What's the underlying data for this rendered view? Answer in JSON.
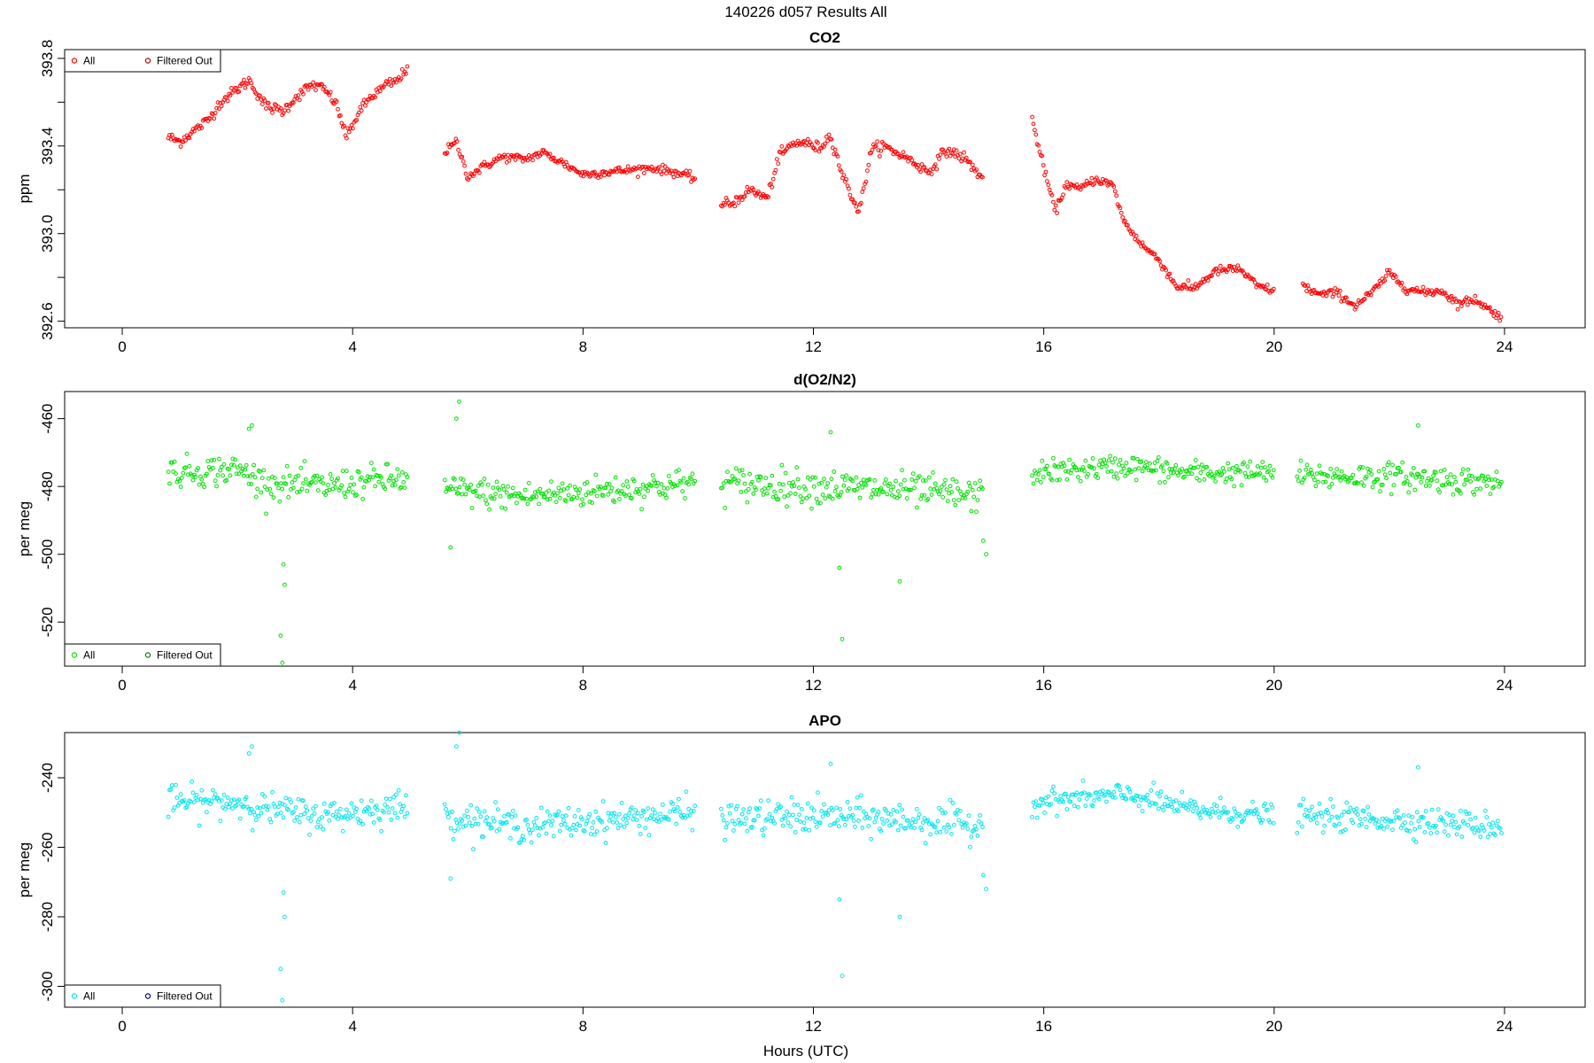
{
  "figure": {
    "main_title": "140226   d057   Results All",
    "xlabel": "Hours (UTC)"
  },
  "chart_data": [
    {
      "type": "scatter",
      "title": "CO2",
      "ylabel": "ppm",
      "xlim": [
        -1.0,
        25.4
      ],
      "ylim": [
        392.57,
        393.84
      ],
      "x_ticks": [
        0,
        4,
        8,
        12,
        16,
        20,
        24
      ],
      "y_ticks": [
        392.6,
        393.0,
        393.4,
        393.8
      ],
      "y_tick_labels": [
        "392.6",
        "393.0",
        "393.4",
        "393.8"
      ],
      "y_minor_ticks": [
        392.8,
        393.2,
        393.6
      ],
      "legend": {
        "position": "top-left",
        "entries": [
          "All",
          "Filtered Out"
        ]
      },
      "colors": {
        "all": "#ff0000",
        "filtered": "#b00000"
      },
      "series": [
        {
          "name": "All",
          "segments": [
            {
              "x": [
                0.8,
                1.0,
                1.3,
                1.5,
                1.7,
                2.0,
                2.2,
                2.5,
                2.8,
                3.0,
                3.3,
                3.5,
                3.7,
                3.9,
                4.1,
                4.3,
                4.6,
                4.8,
                4.95
              ],
              "y": [
                393.44,
                393.42,
                393.48,
                393.52,
                393.6,
                393.66,
                393.7,
                393.58,
                393.56,
                393.62,
                393.68,
                393.66,
                393.6,
                393.44,
                393.55,
                393.62,
                393.68,
                393.7,
                393.76
              ],
              "noise": 0.025
            },
            {
              "x": [
                5.6,
                5.8,
                6.0,
                6.3,
                6.6,
                7.0,
                7.3,
                7.6,
                8.0,
                8.4,
                8.8,
                9.2,
                9.6,
                9.95
              ],
              "y": [
                393.37,
                393.42,
                393.26,
                393.31,
                393.35,
                393.34,
                393.37,
                393.33,
                393.27,
                393.28,
                393.29,
                393.3,
                393.28,
                393.25
              ],
              "noise": 0.02
            },
            {
              "x": [
                10.4,
                10.6,
                10.9,
                11.2,
                11.4,
                11.6,
                11.8,
                12.1,
                12.3,
                12.5,
                12.7,
                12.8,
                13.0,
                13.2,
                13.6,
                14.0,
                14.3,
                14.6,
                14.95
              ],
              "y": [
                393.13,
                393.14,
                393.2,
                393.16,
                393.35,
                393.4,
                393.42,
                393.39,
                393.45,
                393.27,
                393.15,
                393.1,
                393.38,
                393.4,
                393.35,
                393.28,
                393.38,
                393.35,
                393.25
              ],
              "noise": 0.025
            },
            {
              "x": [
                15.8,
                16.0,
                16.2,
                16.4,
                16.6,
                16.9,
                17.2,
                17.4,
                17.7,
                18.0,
                18.3,
                18.6,
                19.0,
                19.4,
                19.7,
                20.0
              ],
              "y": [
                393.52,
                393.3,
                393.1,
                393.23,
                393.2,
                393.25,
                393.22,
                393.05,
                392.95,
                392.88,
                392.76,
                392.75,
                392.83,
                392.84,
                392.76,
                392.74
              ],
              "noise": 0.02
            },
            {
              "x": [
                20.5,
                20.8,
                21.1,
                21.4,
                21.7,
                22.0,
                22.3,
                22.6,
                22.9,
                23.2,
                23.5,
                23.8,
                23.95
              ],
              "y": [
                392.76,
                392.72,
                392.73,
                392.67,
                392.73,
                392.82,
                392.75,
                392.73,
                392.74,
                392.68,
                392.7,
                392.64,
                392.62
              ],
              "noise": 0.02
            }
          ],
          "outliers": []
        }
      ]
    },
    {
      "type": "scatter",
      "title": "d(O2/N2)",
      "ylabel": "per meg",
      "xlim": [
        -1.0,
        25.4
      ],
      "ylim": [
        -533,
        -452
      ],
      "x_ticks": [
        0,
        4,
        8,
        12,
        16,
        20,
        24
      ],
      "y_ticks": [
        -460,
        -480,
        -500,
        -520
      ],
      "y_tick_labels": [
        "-460",
        "-480",
        "-500",
        "-520"
      ],
      "y_minor_ticks": [],
      "legend": {
        "position": "bottom-left",
        "entries": [
          "All",
          "Filtered Out"
        ]
      },
      "colors": {
        "all": "#00e000",
        "filtered": "#008000"
      },
      "series": [
        {
          "name": "All",
          "segments": [
            {
              "x": [
                0.8,
                2.0,
                2.5,
                3.5,
                4.5,
                4.95
              ],
              "y": [
                -476,
                -475,
                -479,
                -480,
                -478,
                -478
              ],
              "noise": 4.5
            },
            {
              "x": [
                5.6,
                7.0,
                8.5,
                9.95
              ],
              "y": [
                -481,
                -483,
                -481,
                -479
              ],
              "noise": 4.5
            },
            {
              "x": [
                10.4,
                12.0,
                13.5,
                14.95
              ],
              "y": [
                -479,
                -480,
                -481,
                -483
              ],
              "noise": 5
            },
            {
              "x": [
                15.8,
                17.5,
                18.5,
                20.0
              ],
              "y": [
                -476,
                -474,
                -476,
                -476
              ],
              "noise": 3.5
            },
            {
              "x": [
                20.4,
                22.0,
                23.95
              ],
              "y": [
                -477,
                -477,
                -479
              ],
              "noise": 4
            }
          ],
          "outliers": [
            {
              "x": 2.25,
              "y": -462
            },
            {
              "x": 2.2,
              "y": -463
            },
            {
              "x": 2.8,
              "y": -503
            },
            {
              "x": 2.82,
              "y": -509
            },
            {
              "x": 2.75,
              "y": -524
            },
            {
              "x": 2.78,
              "y": -532
            },
            {
              "x": 5.85,
              "y": -455
            },
            {
              "x": 5.8,
              "y": -460
            },
            {
              "x": 5.7,
              "y": -498
            },
            {
              "x": 12.45,
              "y": -504
            },
            {
              "x": 12.5,
              "y": -525
            },
            {
              "x": 13.5,
              "y": -508
            },
            {
              "x": 15.0,
              "y": -500
            },
            {
              "x": 14.95,
              "y": -496
            },
            {
              "x": 12.3,
              "y": -464
            },
            {
              "x": 22.5,
              "y": -462
            }
          ]
        }
      ]
    },
    {
      "type": "scatter",
      "title": "APO",
      "ylabel": "per meg",
      "xlim": [
        -1.0,
        25.4
      ],
      "ylim": [
        -306,
        -227
      ],
      "x_ticks": [
        0,
        4,
        8,
        12,
        16,
        20,
        24
      ],
      "y_ticks": [
        -240,
        -260,
        -280,
        -300
      ],
      "y_tick_labels": [
        "-240",
        "-260",
        "-280",
        "-300"
      ],
      "y_minor_ticks": [],
      "legend": {
        "position": "bottom-left",
        "entries": [
          "All",
          "Filtered Out"
        ]
      },
      "colors": {
        "all": "#00e5ee",
        "filtered": "#000080"
      },
      "series": [
        {
          "name": "All",
          "segments": [
            {
              "x": [
                0.8,
                2.0,
                2.5,
                3.5,
                4.5,
                4.95
              ],
              "y": [
                -247,
                -247,
                -249,
                -251,
                -249,
                -248
              ],
              "noise": 4.5
            },
            {
              "x": [
                5.6,
                7.0,
                8.5,
                9.95
              ],
              "y": [
                -251,
                -254,
                -252,
                -250
              ],
              "noise": 4.5
            },
            {
              "x": [
                10.4,
                12.0,
                13.5,
                14.95
              ],
              "y": [
                -252,
                -251,
                -252,
                -254
              ],
              "noise": 5
            },
            {
              "x": [
                15.8,
                17.5,
                18.5,
                20.0
              ],
              "y": [
                -247,
                -245,
                -249,
                -251
              ],
              "noise": 3.5
            },
            {
              "x": [
                20.4,
                22.0,
                23.95
              ],
              "y": [
                -251,
                -252,
                -254
              ],
              "noise": 4
            }
          ],
          "outliers": [
            {
              "x": 2.25,
              "y": -231
            },
            {
              "x": 2.2,
              "y": -233
            },
            {
              "x": 2.8,
              "y": -273
            },
            {
              "x": 2.82,
              "y": -280
            },
            {
              "x": 2.75,
              "y": -295
            },
            {
              "x": 2.78,
              "y": -304
            },
            {
              "x": 5.85,
              "y": -227
            },
            {
              "x": 5.8,
              "y": -231
            },
            {
              "x": 5.7,
              "y": -269
            },
            {
              "x": 12.45,
              "y": -275
            },
            {
              "x": 12.5,
              "y": -297
            },
            {
              "x": 13.5,
              "y": -280
            },
            {
              "x": 15.0,
              "y": -272
            },
            {
              "x": 14.95,
              "y": -268
            },
            {
              "x": 12.3,
              "y": -236
            },
            {
              "x": 22.5,
              "y": -237
            }
          ]
        }
      ]
    }
  ]
}
